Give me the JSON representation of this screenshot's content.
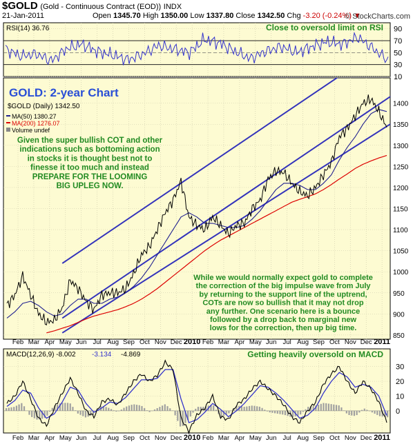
{
  "header": {
    "symbol": "$GOLD",
    "description": "(Gold - Continuous Contract (EOD))",
    "exchange": "INDX",
    "date": "21-Jan-2011",
    "open_label": "Open",
    "open": "1345.70",
    "high_label": "High",
    "high": "1350.00",
    "low_label": "Low",
    "low": "1337.80",
    "close_label": "Close",
    "close": "1342.50",
    "chg_label": "Chg",
    "chg": "-3.20 (-0.24%)",
    "watermark": "© StockCharts.com"
  },
  "colors": {
    "panel_bg": "#fdfbd2",
    "price": "#000000",
    "ma50": "#1f1f8f",
    "ma200": "#dd0000",
    "trend": "#3333bb",
    "annotation": "#228b22",
    "rsi_line": "#3333cc",
    "macd_line": "#000000",
    "signal_line": "#3333cc",
    "histogram": "#a0a0a0"
  },
  "chart_data": [
    {
      "type": "line",
      "name": "rsi",
      "legend": "RSI(14) 36.76",
      "ylim": [
        10,
        100
      ],
      "yticks": [
        10,
        30,
        50,
        70,
        90
      ],
      "reference_lines": [
        70,
        50,
        30
      ],
      "annotation": "Close to oversold limit on RSI",
      "x": [
        0,
        1,
        2,
        3,
        4,
        5,
        6,
        7,
        8,
        9,
        10,
        11,
        12,
        13,
        14,
        15,
        16,
        17,
        18,
        19,
        20,
        21,
        22,
        23,
        24,
        25
      ],
      "values": [
        56,
        44,
        48,
        36,
        57,
        64,
        52,
        46,
        38,
        48,
        62,
        56,
        50,
        72,
        66,
        52,
        40,
        52,
        60,
        50,
        60,
        68,
        64,
        76,
        57,
        37
      ],
      "last": 36.76
    },
    {
      "type": "line",
      "name": "price",
      "title": "GOLD: 2-year Chart",
      "legend": [
        "$GOLD (Daily) 1342.50",
        "MA(50) 1380.27",
        "MA(200) 1276.07",
        "Volume undef"
      ],
      "ylim": [
        840,
        1460
      ],
      "yticks": [
        850,
        900,
        950,
        1000,
        1050,
        1100,
        1150,
        1200,
        1250,
        1300,
        1350,
        1400
      ],
      "xticks": [
        "Feb",
        "Mar",
        "Apr",
        "May",
        "Jun",
        "Jul",
        "Aug",
        "Sep",
        "Oct",
        "Nov",
        "Dec",
        "2010",
        "Feb",
        "Mar",
        "Apr",
        "May",
        "Jun",
        "Jul",
        "Aug",
        "Sep",
        "Oct",
        "Nov",
        "Dec",
        "2011"
      ],
      "x": [
        0,
        0.5,
        1,
        1.5,
        2,
        2.5,
        3,
        3.5,
        4,
        4.5,
        5,
        5.5,
        6,
        6.5,
        7,
        7.5,
        8,
        8.5,
        9,
        9.5,
        10,
        10.5,
        11,
        11.5,
        12,
        12.5,
        13,
        13.5,
        14,
        14.5,
        15,
        15.5,
        16,
        16.5,
        17,
        17.5,
        18,
        18.5,
        19,
        19.5,
        20,
        20.5,
        21,
        21.5,
        22,
        22.5,
        23,
        23.5,
        24
      ],
      "series": [
        {
          "name": "$GOLD (Daily)",
          "values": [
            920,
            945,
            990,
            945,
            900,
            880,
            885,
            915,
            980,
            960,
            930,
            910,
            945,
            950,
            950,
            960,
            995,
            1040,
            1060,
            1100,
            1140,
            1170,
            1215,
            1130,
            1110,
            1100,
            1130,
            1110,
            1090,
            1110,
            1115,
            1150,
            1170,
            1220,
            1240,
            1235,
            1210,
            1190,
            1180,
            1200,
            1230,
            1260,
            1320,
            1340,
            1370,
            1400,
            1410,
            1380,
            1342.5
          ]
        },
        {
          "name": "MA(50)",
          "values": [
            890,
            905,
            925,
            930,
            920,
            905,
            895,
            900,
            920,
            935,
            935,
            925,
            925,
            935,
            940,
            950,
            965,
            985,
            1010,
            1040,
            1070,
            1100,
            1130,
            1140,
            1130,
            1115,
            1115,
            1110,
            1105,
            1105,
            1110,
            1125,
            1145,
            1170,
            1195,
            1210,
            1210,
            1205,
            1195,
            1195,
            1210,
            1230,
            1265,
            1295,
            1320,
            1350,
            1375,
            1385,
            1380.27
          ]
        },
        {
          "name": "MA(200)",
          "values": [
            null,
            null,
            null,
            null,
            null,
            855,
            860,
            866,
            872,
            880,
            888,
            895,
            900,
            905,
            910,
            917,
            925,
            935,
            947,
            960,
            975,
            990,
            1005,
            1020,
            1035,
            1050,
            1063,
            1075,
            1085,
            1095,
            1105,
            1115,
            1125,
            1135,
            1145,
            1155,
            1165,
            1172,
            1178,
            1185,
            1195,
            1207,
            1220,
            1232,
            1245,
            1255,
            1263,
            1270,
            1276.07
          ]
        }
      ],
      "trend_channel": [
        {
          "name": "upper",
          "from": [
            3.5,
            1020
          ],
          "to": [
            24,
            1540
          ]
        },
        {
          "name": "middle",
          "from": [
            3.5,
            890
          ],
          "to": [
            24,
            1410
          ]
        },
        {
          "name": "lower",
          "from": [
            3.5,
            855
          ],
          "to": [
            24,
            1345
          ]
        }
      ]
    },
    {
      "type": "line",
      "name": "macd",
      "legend": [
        "MACD(12,26,9) -8.002",
        "-3.134",
        "-4.869"
      ],
      "annotation": "Getting heavily oversold on MACD",
      "ylim": [
        -15,
        42
      ],
      "yticks": [
        0,
        10,
        20,
        30
      ],
      "x": [
        0,
        0.5,
        1,
        1.5,
        2,
        2.5,
        3,
        3.5,
        4,
        4.5,
        5,
        5.5,
        6,
        6.5,
        7,
        7.5,
        8,
        8.5,
        9,
        9.5,
        10,
        10.5,
        11,
        11.5,
        12,
        12.5,
        13,
        13.5,
        14,
        14.5,
        15,
        15.5,
        16,
        16.5,
        17,
        17.5,
        18,
        18.5,
        19,
        19.5,
        20,
        20.5,
        21,
        21.5,
        22,
        22.5,
        23,
        23.5,
        24
      ],
      "series": [
        {
          "name": "MACD",
          "values": [
            5,
            10,
            20,
            8,
            -5,
            -10,
            2,
            12,
            22,
            12,
            0,
            -4,
            6,
            8,
            4,
            12,
            20,
            25,
            20,
            24,
            33,
            28,
            -5,
            -14,
            -3,
            2,
            10,
            -4,
            -6,
            4,
            8,
            15,
            20,
            15,
            10,
            4,
            -4,
            -8,
            0,
            6,
            18,
            25,
            30,
            20,
            12,
            20,
            15,
            6,
            -8
          ]
        },
        {
          "name": "Signal",
          "values": [
            3,
            7,
            14,
            12,
            2,
            -5,
            -2,
            6,
            16,
            14,
            5,
            -1,
            2,
            6,
            5,
            9,
            15,
            21,
            21,
            22,
            28,
            28,
            8,
            -8,
            -6,
            -1,
            5,
            1,
            -4,
            0,
            5,
            11,
            17,
            16,
            12,
            7,
            1,
            -5,
            -3,
            2,
            12,
            20,
            26,
            23,
            16,
            18,
            16,
            10,
            -3.134
          ]
        }
      ]
    }
  ],
  "annotations": {
    "bullish_note_lines": [
      "Given the super bullish COT and other",
      "indications such as bottoming action",
      "in stocks it is thought best not to",
      "finesse it too much and instead",
      "PREPARE FOR THE LOOMING",
      "BIG UPLEG NOW."
    ],
    "correction_note_lines": [
      "While we would normally expect gold to complete",
      "the correction of the big impulse wave from July",
      "by returning to the support line of the uptrend,",
      "COTs are now so bullish that it may not drop",
      "any further. One scenario here is a bounce",
      "followed by a drop back to marginal new",
      "lows for the correction, then up big time."
    ]
  }
}
